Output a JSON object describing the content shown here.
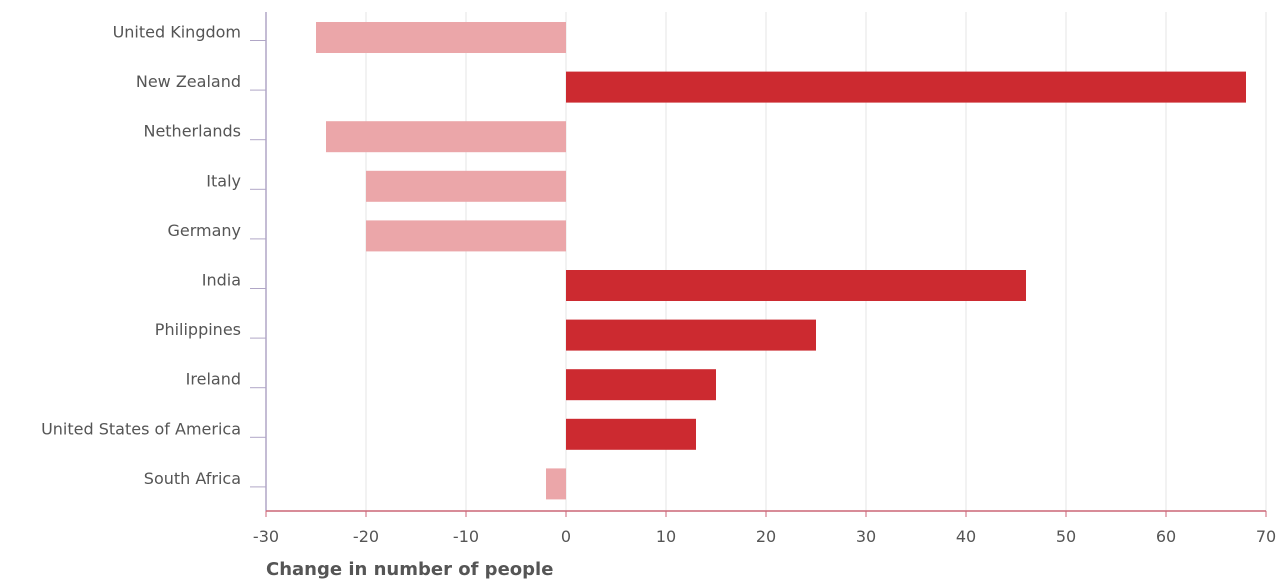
{
  "chart_data": {
    "type": "bar",
    "orientation": "horizontal",
    "categories": [
      "United Kingdom",
      "New Zealand",
      "Netherlands",
      "Italy",
      "Germany",
      "India",
      "Philippines",
      "Ireland",
      "United States of America",
      "South Africa"
    ],
    "values": [
      -25,
      68,
      -24,
      -20,
      -20,
      46,
      25,
      15,
      13,
      -2
    ],
    "xlabel": "Change in number of people",
    "xlim": [
      -30,
      70
    ],
    "xticks": [
      -30,
      -20,
      -10,
      0,
      10,
      20,
      30,
      40,
      50,
      60,
      70
    ],
    "grid": "vertical",
    "colors": {
      "positive": "#cc2a30",
      "negative": "#eba6a9",
      "grid": "#e6e6e6",
      "axis": "#cc6677"
    }
  }
}
